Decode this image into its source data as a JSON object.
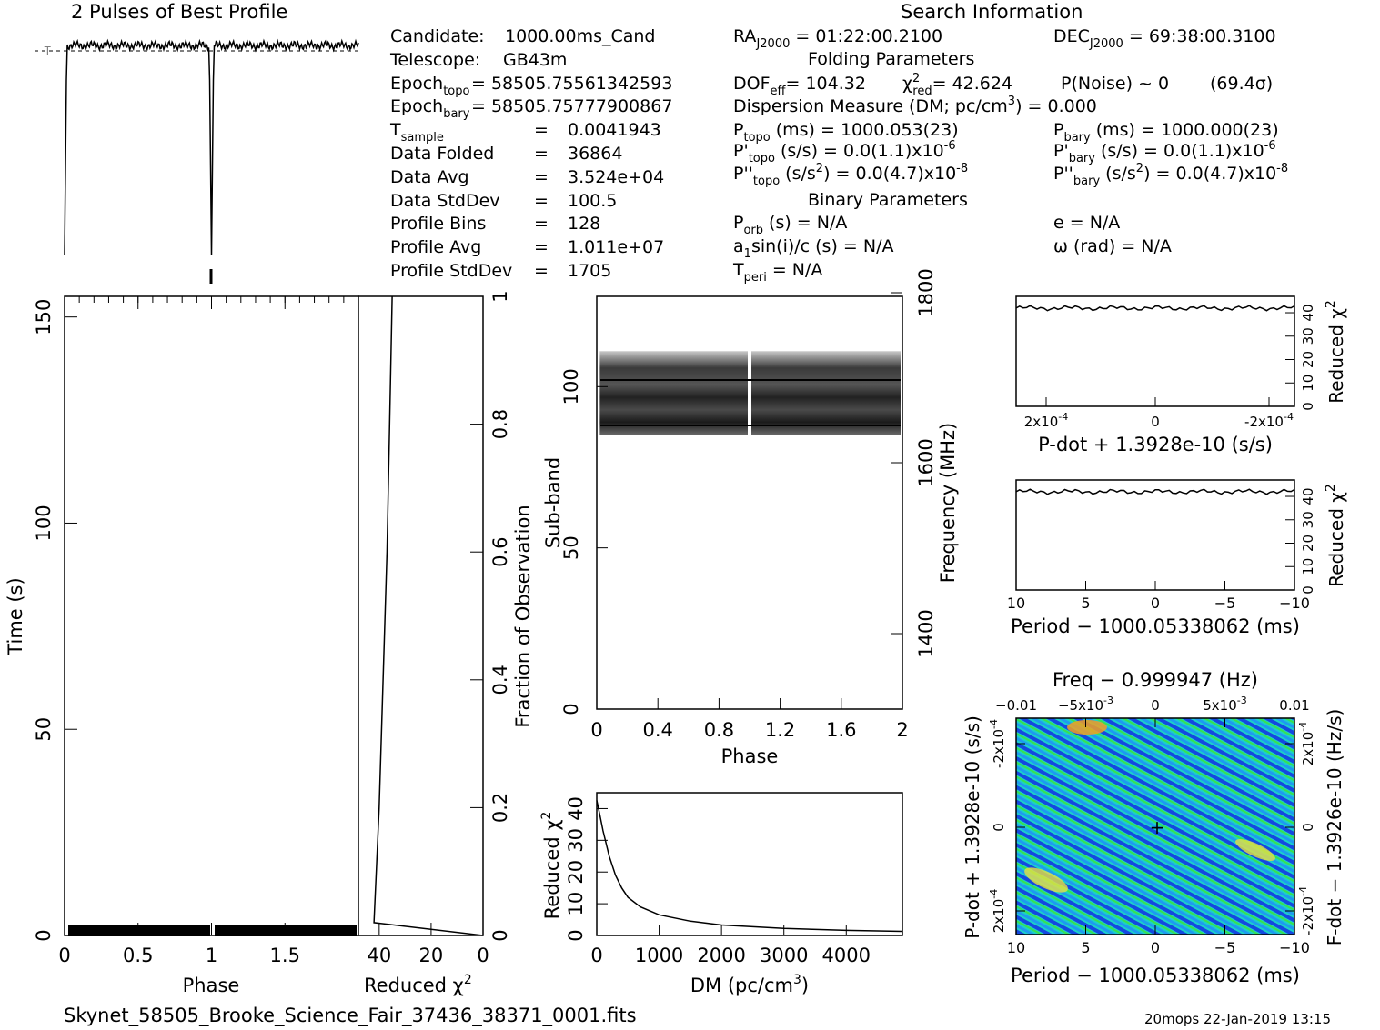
{
  "header": {
    "profile_title": "2 Pulses of Best Profile",
    "search_title": "Search Information",
    "folding_title": "Folding Parameters",
    "binary_title": "Binary Parameters"
  },
  "info_left": [
    {
      "label": "Candidate:",
      "value": "1000.00ms_Cand"
    },
    {
      "label": "Telescope:",
      "value": "GB43m"
    },
    {
      "label": "Epoch",
      "sub": "topo",
      "value": "= 58505.75561342593"
    },
    {
      "label": "Epoch",
      "sub": "bary",
      "value": "= 58505.75777900867"
    },
    {
      "label": "T",
      "sub": "sample",
      "value": "0.0041943"
    },
    {
      "label": "Data Folded",
      "value": "36864"
    },
    {
      "label": "Data Avg",
      "value": "3.524e+04"
    },
    {
      "label": "Data StdDev",
      "value": "100.5"
    },
    {
      "label": "Profile Bins",
      "value": "128"
    },
    {
      "label": "Profile Avg",
      "value": "1.011e+07"
    },
    {
      "label": "Profile StdDev",
      "value": "1705"
    }
  ],
  "info_mid": {
    "ra": "= 01:22:00.2100",
    "dof": "DOF",
    "dof_sub": "eff",
    "dof_value": "= 104.32",
    "chi2": "= 42.624",
    "chi2_sub": "red",
    "pnoise": "P(Noise) ~ 0",
    "sigma": "(69.4σ)",
    "dm_line": "Dispersion Measure (DM; pc/cm",
    "dm_value": ") = 0.000",
    "ptopo": "(ms) = 1000.053(23)",
    "pdtopo": "(s/s) = 0.0(1.1)x10",
    "pdtopo_exp": "-6",
    "pddtopo": "(s/s",
    "pddtopo_val": ") = 0.0(4.7)x10",
    "pddtopo_exp": "-8",
    "porb": "(s) = N/A",
    "a1": "a",
    "a1_rest": "sin(i)/c (s) = N/A",
    "tperi": "= N/A"
  },
  "info_right": {
    "dec": "= 69:38:00.3100",
    "pbary": "(ms) = 1000.000(23)",
    "pdbary": "(s/s) = 0.0(1.1)x10",
    "pdbary_exp": "-6",
    "pddbary": "(s/s",
    "pddbary_val": ") = 0.0(4.7)x10",
    "pddbary_exp": "-8",
    "ecc": "e = N/A",
    "omega": "ω (rad) = N/A"
  },
  "chart_data": [
    {
      "type": "line",
      "name": "profile",
      "title": "2 Pulses of Best Profile",
      "x": [
        0,
        2
      ],
      "dips": [
        0.0,
        1.0
      ],
      "baseline": 0.93
    },
    {
      "type": "heatmap",
      "name": "time-phase",
      "xlabel": "Phase",
      "ylabel": "Time (s)",
      "xlim": [
        0,
        2
      ],
      "ylim": [
        0,
        155
      ],
      "xticks": [
        "0",
        "0.5",
        "1",
        "1.5"
      ],
      "yticks": [
        "0",
        "50",
        "100",
        "150"
      ],
      "dark_band_time": [
        0,
        3
      ]
    },
    {
      "type": "line",
      "name": "time-chi2",
      "xlabel": "Reduced χ²",
      "ylabel": "Fraction of Observation",
      "xticks": [
        "40",
        "20",
        "0"
      ],
      "yticks": [
        "0",
        "0.2",
        "0.4",
        "0.6",
        "0.8",
        "1"
      ],
      "points": [
        [
          0,
          0
        ],
        [
          42,
          0.02
        ],
        [
          40,
          0.2
        ],
        [
          37,
          0.6
        ],
        [
          36,
          0.8
        ],
        [
          35,
          1.0
        ]
      ]
    },
    {
      "type": "heatmap",
      "name": "subband-phase",
      "xlabel": "Phase",
      "ylabel": "Sub-band",
      "y2label": "Frequency (MHz)",
      "xlim": [
        0,
        2
      ],
      "ylim": [
        0,
        128
      ],
      "xticks": [
        "0",
        "0.4",
        "0.8",
        "1.2",
        "1.6",
        "2"
      ],
      "yticks": [
        "0",
        "50",
        "100"
      ],
      "y2ticks": [
        "1400",
        "1600",
        "1800"
      ],
      "active_subbands": [
        85,
        111
      ]
    },
    {
      "type": "line",
      "name": "dm-chi2",
      "xlabel": "DM (pc/cm³)",
      "ylabel": "Reduced χ²",
      "xlim": [
        0,
        4900
      ],
      "ylim": [
        0,
        45
      ],
      "xticks": [
        "0",
        "1000",
        "2000",
        "3000",
        "4000"
      ],
      "yticks": [
        "0",
        "10",
        "20",
        "30",
        "40"
      ],
      "points": [
        [
          0,
          42.6
        ],
        [
          50,
          38
        ],
        [
          100,
          33
        ],
        [
          200,
          25
        ],
        [
          300,
          19
        ],
        [
          400,
          15
        ],
        [
          500,
          12
        ],
        [
          700,
          9
        ],
        [
          1000,
          6.5
        ],
        [
          1500,
          4.5
        ],
        [
          2000,
          3.3
        ],
        [
          3000,
          2.2
        ],
        [
          4000,
          1.6
        ],
        [
          4900,
          1.3
        ]
      ]
    },
    {
      "type": "line",
      "name": "pdot-chi2",
      "xlabel": "P-dot + 1.3928e-10 (s/s)",
      "ylabel": "Reduced χ²",
      "xticks": [
        "2x10-4",
        "0",
        "-2x10-4"
      ],
      "yticks": [
        "0",
        "10",
        "20",
        "30",
        "40"
      ],
      "ylim": [
        0,
        47
      ],
      "level": 42
    },
    {
      "type": "line",
      "name": "period-chi2",
      "xlabel": "Period − 1000.05338062 (ms)",
      "ylabel": "Reduced χ²",
      "xticks": [
        "10",
        "5",
        "0",
        "−5",
        "−10"
      ],
      "yticks": [
        "0",
        "10",
        "20",
        "30",
        "40"
      ],
      "ylim": [
        0,
        47
      ],
      "level": 42
    },
    {
      "type": "heatmap",
      "name": "p-pdot",
      "title": "Freq − 0.999947 (Hz)",
      "xlabel": "Period − 1000.05338062 (ms)",
      "ylabel": "P-dot + 1.3928e-10 (s/s)",
      "y2label": "F-dot − 1.3926e-10 (Hz/s)",
      "xticks": [
        "10",
        "5",
        "0",
        "−5",
        "−10"
      ],
      "x2ticks": [
        "−0.01",
        "−5x10-3",
        "0",
        "5x10-3",
        "0.01"
      ],
      "yticks": [
        "-2x10-4",
        "0",
        "2x10-4"
      ],
      "y2ticks": [
        "2x10-4",
        "0",
        "-2x10-4"
      ]
    }
  ],
  "footer": {
    "filename": "Skynet_58505_Brooke_Science_Fair_37436_38371_0001.fits",
    "stamp": "20mops 22-Jan-2019 13:15"
  }
}
